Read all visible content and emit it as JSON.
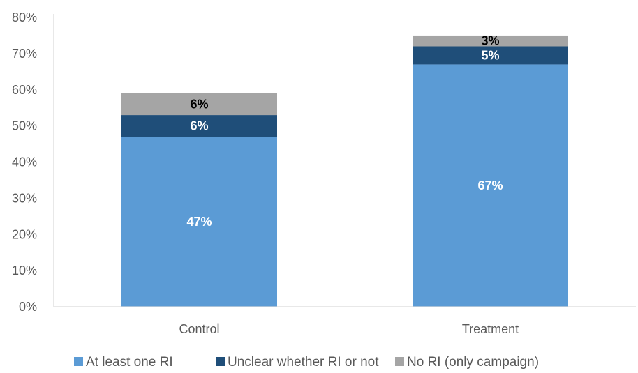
{
  "chart_data": {
    "type": "bar",
    "stacked": true,
    "categories": [
      "Control",
      "Treatment"
    ],
    "series": [
      {
        "name": "At least one RI",
        "values": [
          47,
          67
        ],
        "labels": [
          "47%",
          "67%"
        ],
        "color": "#5B9BD5",
        "label_color": "#ffffff"
      },
      {
        "name": "Unclear whether RI or not",
        "values": [
          6,
          5
        ],
        "labels": [
          "6%",
          "5%"
        ],
        "color": "#1F4E79",
        "label_color": "#ffffff"
      },
      {
        "name": "No RI (only campaign)",
        "values": [
          6,
          3
        ],
        "labels": [
          "6%",
          "3%"
        ],
        "color": "#A5A5A5",
        "label_color": "#000000"
      }
    ],
    "ylim": [
      0,
      80
    ],
    "yticks": [
      0,
      10,
      20,
      30,
      40,
      50,
      60,
      70,
      80
    ],
    "ytick_labels": [
      "0%",
      "10%",
      "20%",
      "30%",
      "40%",
      "50%",
      "60%",
      "70%",
      "80%"
    ],
    "grid": false,
    "legend_position": "bottom",
    "title": "",
    "xlabel": "",
    "ylabel": ""
  }
}
